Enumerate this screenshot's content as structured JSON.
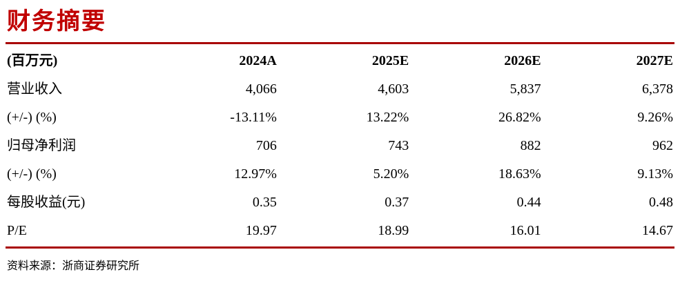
{
  "header": {
    "title": "财务摘要"
  },
  "colors": {
    "title_accent": "#C00000",
    "rule": "#A80000",
    "text": "#000000",
    "background": "#FFFFFF"
  },
  "table": {
    "unit_label": "(百万元)",
    "year_columns": [
      "2024A",
      "2025E",
      "2026E",
      "2027E"
    ],
    "rows": [
      {
        "label": "营业收入",
        "values": [
          "4,066",
          "4,603",
          "5,837",
          "6,378"
        ]
      },
      {
        "label": "(+/-) (%)",
        "values": [
          "-13.11%",
          "13.22%",
          "26.82%",
          "9.26%"
        ]
      },
      {
        "label": "归母净利润",
        "values": [
          "706",
          "743",
          "882",
          "962"
        ]
      },
      {
        "label": "(+/-) (%)",
        "values": [
          "12.97%",
          "5.20%",
          "18.63%",
          "9.13%"
        ]
      },
      {
        "label": "每股收益(元)",
        "values": [
          "0.35",
          "0.37",
          "0.44",
          "0.48"
        ]
      },
      {
        "label": "P/E",
        "values": [
          "19.97",
          "18.99",
          "16.01",
          "14.67"
        ]
      }
    ]
  },
  "footer": {
    "source": "资料来源：浙商证券研究所"
  }
}
